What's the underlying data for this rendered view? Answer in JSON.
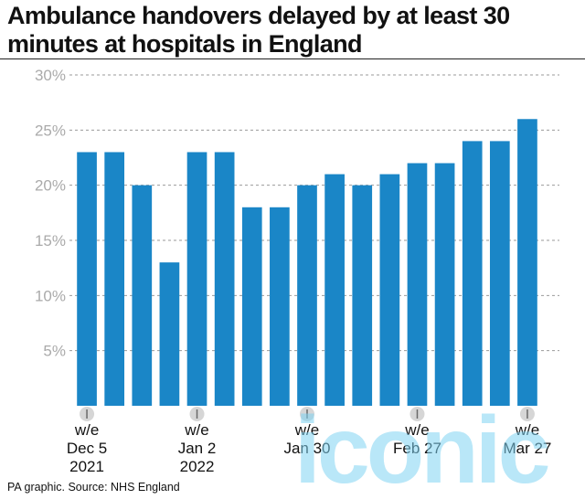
{
  "title": "Ambulance handovers delayed by at least 30 minutes at hospitals in England",
  "source": "PA graphic. Source: NHS England",
  "watermark": "iconic",
  "colors": {
    "bar": "#1a86c7",
    "grid": "#9a9a9a",
    "axis_text": "#aaaaaa",
    "text": "#111111",
    "watermark": "#7fd3f2"
  },
  "chart_data": {
    "type": "bar",
    "title": "Ambulance handovers delayed by at least 30 minutes at hospitals in England",
    "xlabel": "",
    "ylabel": "",
    "ylim": [
      0,
      30
    ],
    "yticks": [
      "5%",
      "10%",
      "15%",
      "20%",
      "25%",
      "30%"
    ],
    "ytick_values": [
      5,
      10,
      15,
      20,
      25,
      30
    ],
    "grid": "horizontal dashed",
    "values": [
      23,
      23,
      20,
      13,
      23,
      23,
      18,
      18,
      20,
      21,
      20,
      21,
      22,
      22,
      24,
      24,
      26
    ],
    "x_labels": [
      {
        "bar_index": 0,
        "lines": [
          "w/e",
          "Dec 5",
          "2021"
        ]
      },
      {
        "bar_index": 4,
        "lines": [
          "w/e",
          "Jan 2",
          "2022"
        ]
      },
      {
        "bar_index": 8,
        "lines": [
          "w/e",
          "Jan 30"
        ]
      },
      {
        "bar_index": 12,
        "lines": [
          "w/e",
          "Feb 27"
        ]
      },
      {
        "bar_index": 16,
        "lines": [
          "w/e",
          "Mar 27"
        ]
      }
    ]
  }
}
